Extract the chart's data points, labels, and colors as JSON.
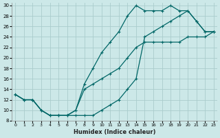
{
  "xlabel": "Humidex (Indice chaleur)",
  "bg_color": "#cce8e8",
  "grid_color": "#aacccc",
  "line_color": "#006666",
  "xlim_min": -0.4,
  "xlim_max": 23.4,
  "ylim_min": 8,
  "ylim_max": 30.5,
  "xticks": [
    0,
    1,
    2,
    3,
    4,
    5,
    6,
    7,
    8,
    9,
    10,
    11,
    12,
    13,
    14,
    15,
    16,
    17,
    18,
    19,
    20,
    21,
    22,
    23
  ],
  "yticks": [
    8,
    10,
    12,
    14,
    16,
    18,
    20,
    22,
    24,
    26,
    28,
    30
  ],
  "curve1_x": [
    0,
    1,
    2,
    3,
    4,
    5,
    6,
    7,
    8,
    9,
    10,
    11,
    12,
    13,
    14,
    15,
    16,
    17,
    18,
    19,
    20,
    21,
    22,
    23
  ],
  "curve1_y": [
    13,
    12,
    12,
    10,
    9,
    9,
    9,
    10,
    15,
    18,
    21,
    23,
    25,
    28,
    30,
    29,
    29,
    29,
    30,
    29,
    29,
    27,
    25,
    25
  ],
  "curve2_x": [
    0,
    1,
    2,
    3,
    4,
    5,
    6,
    7,
    8,
    9,
    10,
    11,
    12,
    13,
    14,
    15,
    16,
    17,
    18,
    19,
    20,
    21,
    22,
    23
  ],
  "curve2_y": [
    13,
    12,
    12,
    10,
    9,
    9,
    9,
    10,
    14,
    15,
    16,
    17,
    18,
    20,
    22,
    23,
    23,
    23,
    23,
    23,
    24,
    24,
    24,
    25
  ],
  "curve3_x": [
    0,
    1,
    2,
    3,
    4,
    5,
    6,
    7,
    8,
    9,
    10,
    11,
    12,
    13,
    14,
    15,
    16,
    17,
    18,
    19,
    20,
    21,
    22,
    23
  ],
  "curve3_y": [
    13,
    12,
    12,
    10,
    9,
    9,
    9,
    9,
    9,
    9,
    10,
    11,
    12,
    14,
    16,
    24,
    25,
    26,
    27,
    28,
    29,
    27,
    25,
    25
  ]
}
